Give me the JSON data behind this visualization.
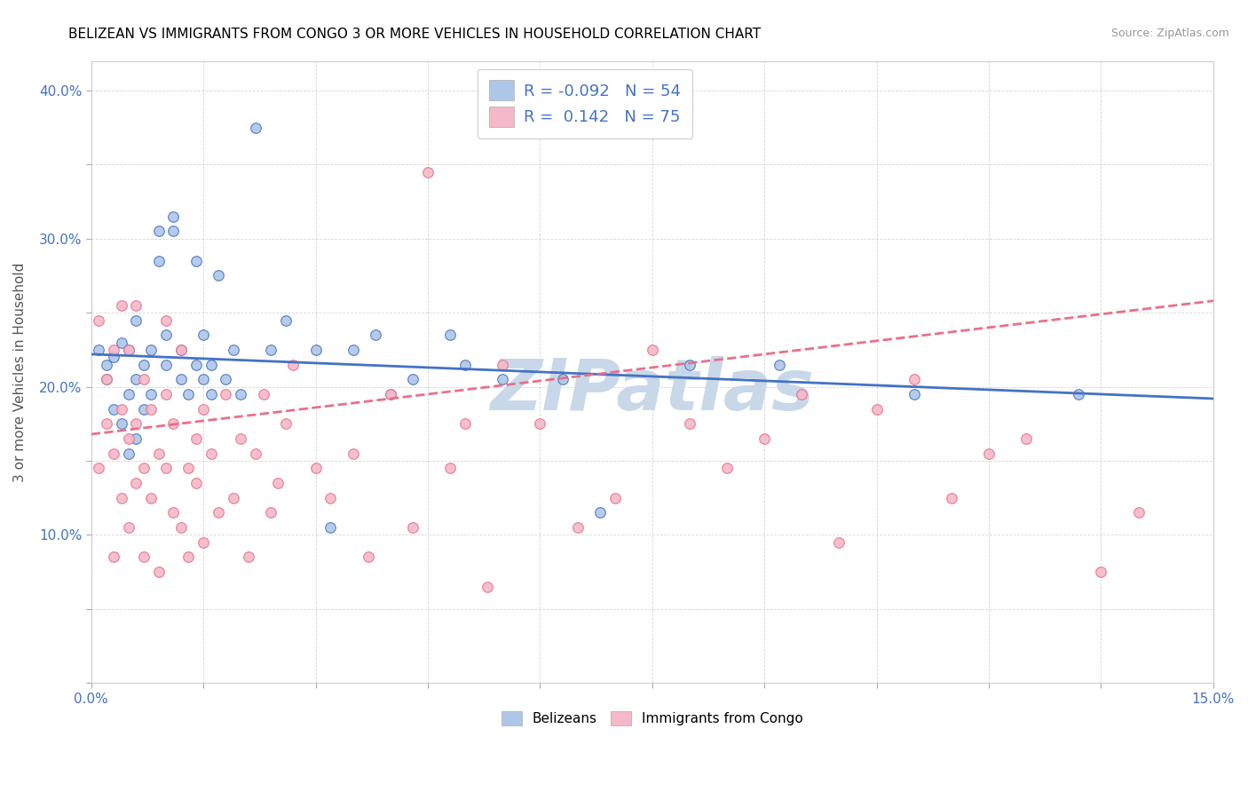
{
  "title": "BELIZEAN VS IMMIGRANTS FROM CONGO 3 OR MORE VEHICLES IN HOUSEHOLD CORRELATION CHART",
  "source": "Source: ZipAtlas.com",
  "ylabel": "3 or more Vehicles in Household",
  "xlim": [
    0.0,
    0.15
  ],
  "ylim": [
    0.0,
    0.42
  ],
  "legend_R1": "-0.092",
  "legend_N1": "54",
  "legend_R2": "0.142",
  "legend_N2": "75",
  "color_belizean": "#aec6e8",
  "color_congo": "#f5b8c8",
  "trendline_belizean": "#4472c4",
  "trendline_congo": "#e8708a",
  "watermark": "ZIPatlas",
  "watermark_color": "#c8d8e8",
  "belizean_intercept": 0.222,
  "belizean_slope": -0.2,
  "congo_intercept": 0.168,
  "congo_slope": 0.6,
  "belizean_x": [
    0.001,
    0.002,
    0.002,
    0.003,
    0.003,
    0.004,
    0.004,
    0.005,
    0.005,
    0.005,
    0.006,
    0.006,
    0.006,
    0.007,
    0.007,
    0.008,
    0.008,
    0.009,
    0.009,
    0.01,
    0.01,
    0.011,
    0.011,
    0.012,
    0.012,
    0.013,
    0.014,
    0.014,
    0.015,
    0.015,
    0.016,
    0.016,
    0.017,
    0.018,
    0.019,
    0.02,
    0.022,
    0.024,
    0.026,
    0.03,
    0.032,
    0.035,
    0.038,
    0.04,
    0.043,
    0.048,
    0.05,
    0.055,
    0.063,
    0.068,
    0.08,
    0.092,
    0.11,
    0.132
  ],
  "belizean_y": [
    0.225,
    0.205,
    0.215,
    0.185,
    0.22,
    0.175,
    0.23,
    0.155,
    0.195,
    0.225,
    0.205,
    0.165,
    0.245,
    0.215,
    0.185,
    0.225,
    0.195,
    0.305,
    0.285,
    0.215,
    0.235,
    0.305,
    0.315,
    0.225,
    0.205,
    0.195,
    0.215,
    0.285,
    0.205,
    0.235,
    0.195,
    0.215,
    0.275,
    0.205,
    0.225,
    0.195,
    0.375,
    0.225,
    0.245,
    0.225,
    0.105,
    0.225,
    0.235,
    0.195,
    0.205,
    0.235,
    0.215,
    0.205,
    0.205,
    0.115,
    0.215,
    0.215,
    0.195,
    0.195
  ],
  "congo_x": [
    0.001,
    0.001,
    0.002,
    0.002,
    0.003,
    0.003,
    0.003,
    0.004,
    0.004,
    0.004,
    0.005,
    0.005,
    0.005,
    0.006,
    0.006,
    0.006,
    0.007,
    0.007,
    0.007,
    0.008,
    0.008,
    0.009,
    0.009,
    0.01,
    0.01,
    0.01,
    0.011,
    0.011,
    0.012,
    0.012,
    0.013,
    0.013,
    0.014,
    0.014,
    0.015,
    0.015,
    0.016,
    0.017,
    0.018,
    0.019,
    0.02,
    0.021,
    0.022,
    0.023,
    0.024,
    0.025,
    0.026,
    0.027,
    0.03,
    0.032,
    0.035,
    0.037,
    0.04,
    0.043,
    0.045,
    0.048,
    0.05,
    0.053,
    0.055,
    0.06,
    0.065,
    0.07,
    0.075,
    0.08,
    0.085,
    0.09,
    0.095,
    0.1,
    0.105,
    0.11,
    0.115,
    0.12,
    0.125,
    0.135,
    0.14
  ],
  "congo_y": [
    0.145,
    0.245,
    0.205,
    0.175,
    0.085,
    0.155,
    0.225,
    0.125,
    0.185,
    0.255,
    0.165,
    0.105,
    0.225,
    0.135,
    0.175,
    0.255,
    0.145,
    0.085,
    0.205,
    0.125,
    0.185,
    0.075,
    0.155,
    0.145,
    0.195,
    0.245,
    0.115,
    0.175,
    0.105,
    0.225,
    0.145,
    0.085,
    0.165,
    0.135,
    0.095,
    0.185,
    0.155,
    0.115,
    0.195,
    0.125,
    0.165,
    0.085,
    0.155,
    0.195,
    0.115,
    0.135,
    0.175,
    0.215,
    0.145,
    0.125,
    0.155,
    0.085,
    0.195,
    0.105,
    0.345,
    0.145,
    0.175,
    0.065,
    0.215,
    0.175,
    0.105,
    0.125,
    0.225,
    0.175,
    0.145,
    0.165,
    0.195,
    0.095,
    0.185,
    0.205,
    0.125,
    0.155,
    0.165,
    0.075,
    0.115
  ]
}
